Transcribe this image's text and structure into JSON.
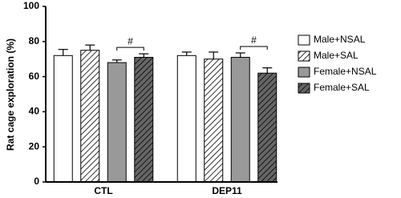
{
  "chart_data": {
    "type": "bar",
    "y_label": "Rat cage exploration (%)",
    "categories": [
      "CTL",
      "DEP11"
    ],
    "series": [
      {
        "name": "Male+NSAL",
        "color": "#ffffff",
        "hatch": false,
        "values": [
          72,
          72
        ],
        "errors": [
          3.5,
          2
        ]
      },
      {
        "name": "Male+SAL",
        "color": "#ffffff",
        "hatch": true,
        "values": [
          75,
          70
        ],
        "errors": [
          3,
          4
        ]
      },
      {
        "name": "Female+NSAL",
        "color": "#999999",
        "hatch": false,
        "values": [
          68,
          71
        ],
        "errors": [
          1.5,
          2.5
        ]
      },
      {
        "name": "Female+SAL",
        "color": "#666666",
        "hatch": true,
        "values": [
          71,
          62
        ],
        "errors": [
          2,
          3
        ]
      }
    ],
    "annotations": [
      "#",
      "#"
    ],
    "ylim": [
      0,
      100
    ],
    "yticks": [
      0,
      20,
      40,
      60,
      80,
      100
    ],
    "legend": "right"
  }
}
